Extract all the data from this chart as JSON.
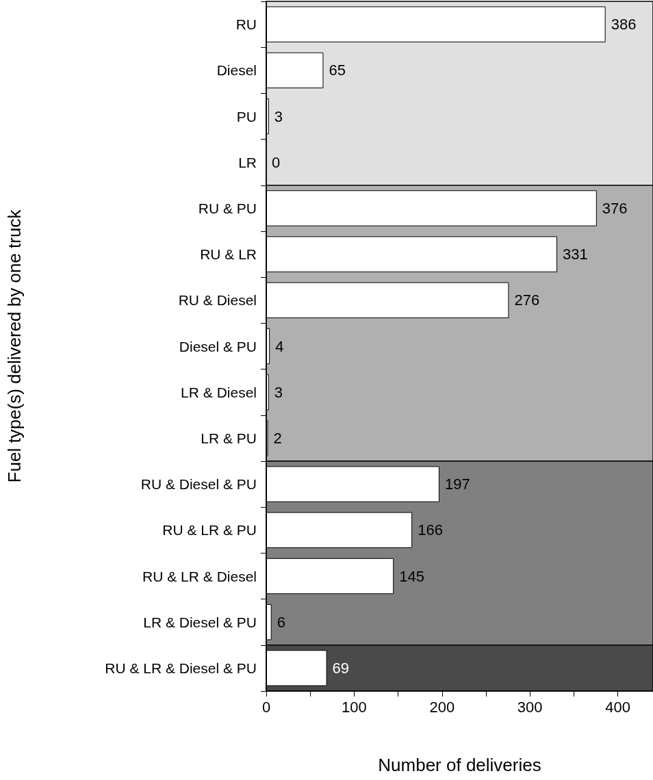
{
  "chart_data": {
    "type": "bar",
    "orientation": "horizontal",
    "xlabel": "Number of deliveries",
    "ylabel": "Fuel type(s) delivered by one truck",
    "categories": [
      "RU",
      "Diesel",
      "PU",
      "LR",
      "RU & PU",
      "RU & LR",
      "RU & Diesel",
      "Diesel & PU",
      "LR & Diesel",
      "LR & PU",
      "RU & Diesel & PU",
      "RU & LR & PU",
      "RU & LR & Diesel",
      "LR & Diesel & PU",
      "RU & LR & Diesel & PU"
    ],
    "values": [
      386,
      65,
      3,
      0,
      376,
      331,
      276,
      4,
      3,
      2,
      197,
      166,
      145,
      6,
      69
    ],
    "color": "#ffffff",
    "data_labels": true,
    "xlim": [
      0,
      440
    ],
    "xticks": [
      0,
      {
        "value": 50,
        "label": null
      },
      100,
      {
        "value": 150,
        "label": null
      },
      200,
      {
        "value": 250,
        "label": null
      },
      300,
      {
        "value": 350,
        "label": null
      },
      400
    ],
    "bands": [
      {
        "axis": "y",
        "from": "RU",
        "to": "LR",
        "color": "#e0e0e0"
      },
      {
        "axis": "y",
        "from": "RU & PU",
        "to": "LR & PU",
        "color": "#b0b0b0"
      },
      {
        "axis": "y",
        "from": "RU & Diesel & PU",
        "to": "LR & Diesel & PU",
        "color": "#808080"
      },
      {
        "axis": "y",
        "from": "RU & LR & Diesel & PU",
        "to": "RU & LR & Diesel & PU",
        "color": "#4a4a4a"
      }
    ],
    "grid": false
  }
}
